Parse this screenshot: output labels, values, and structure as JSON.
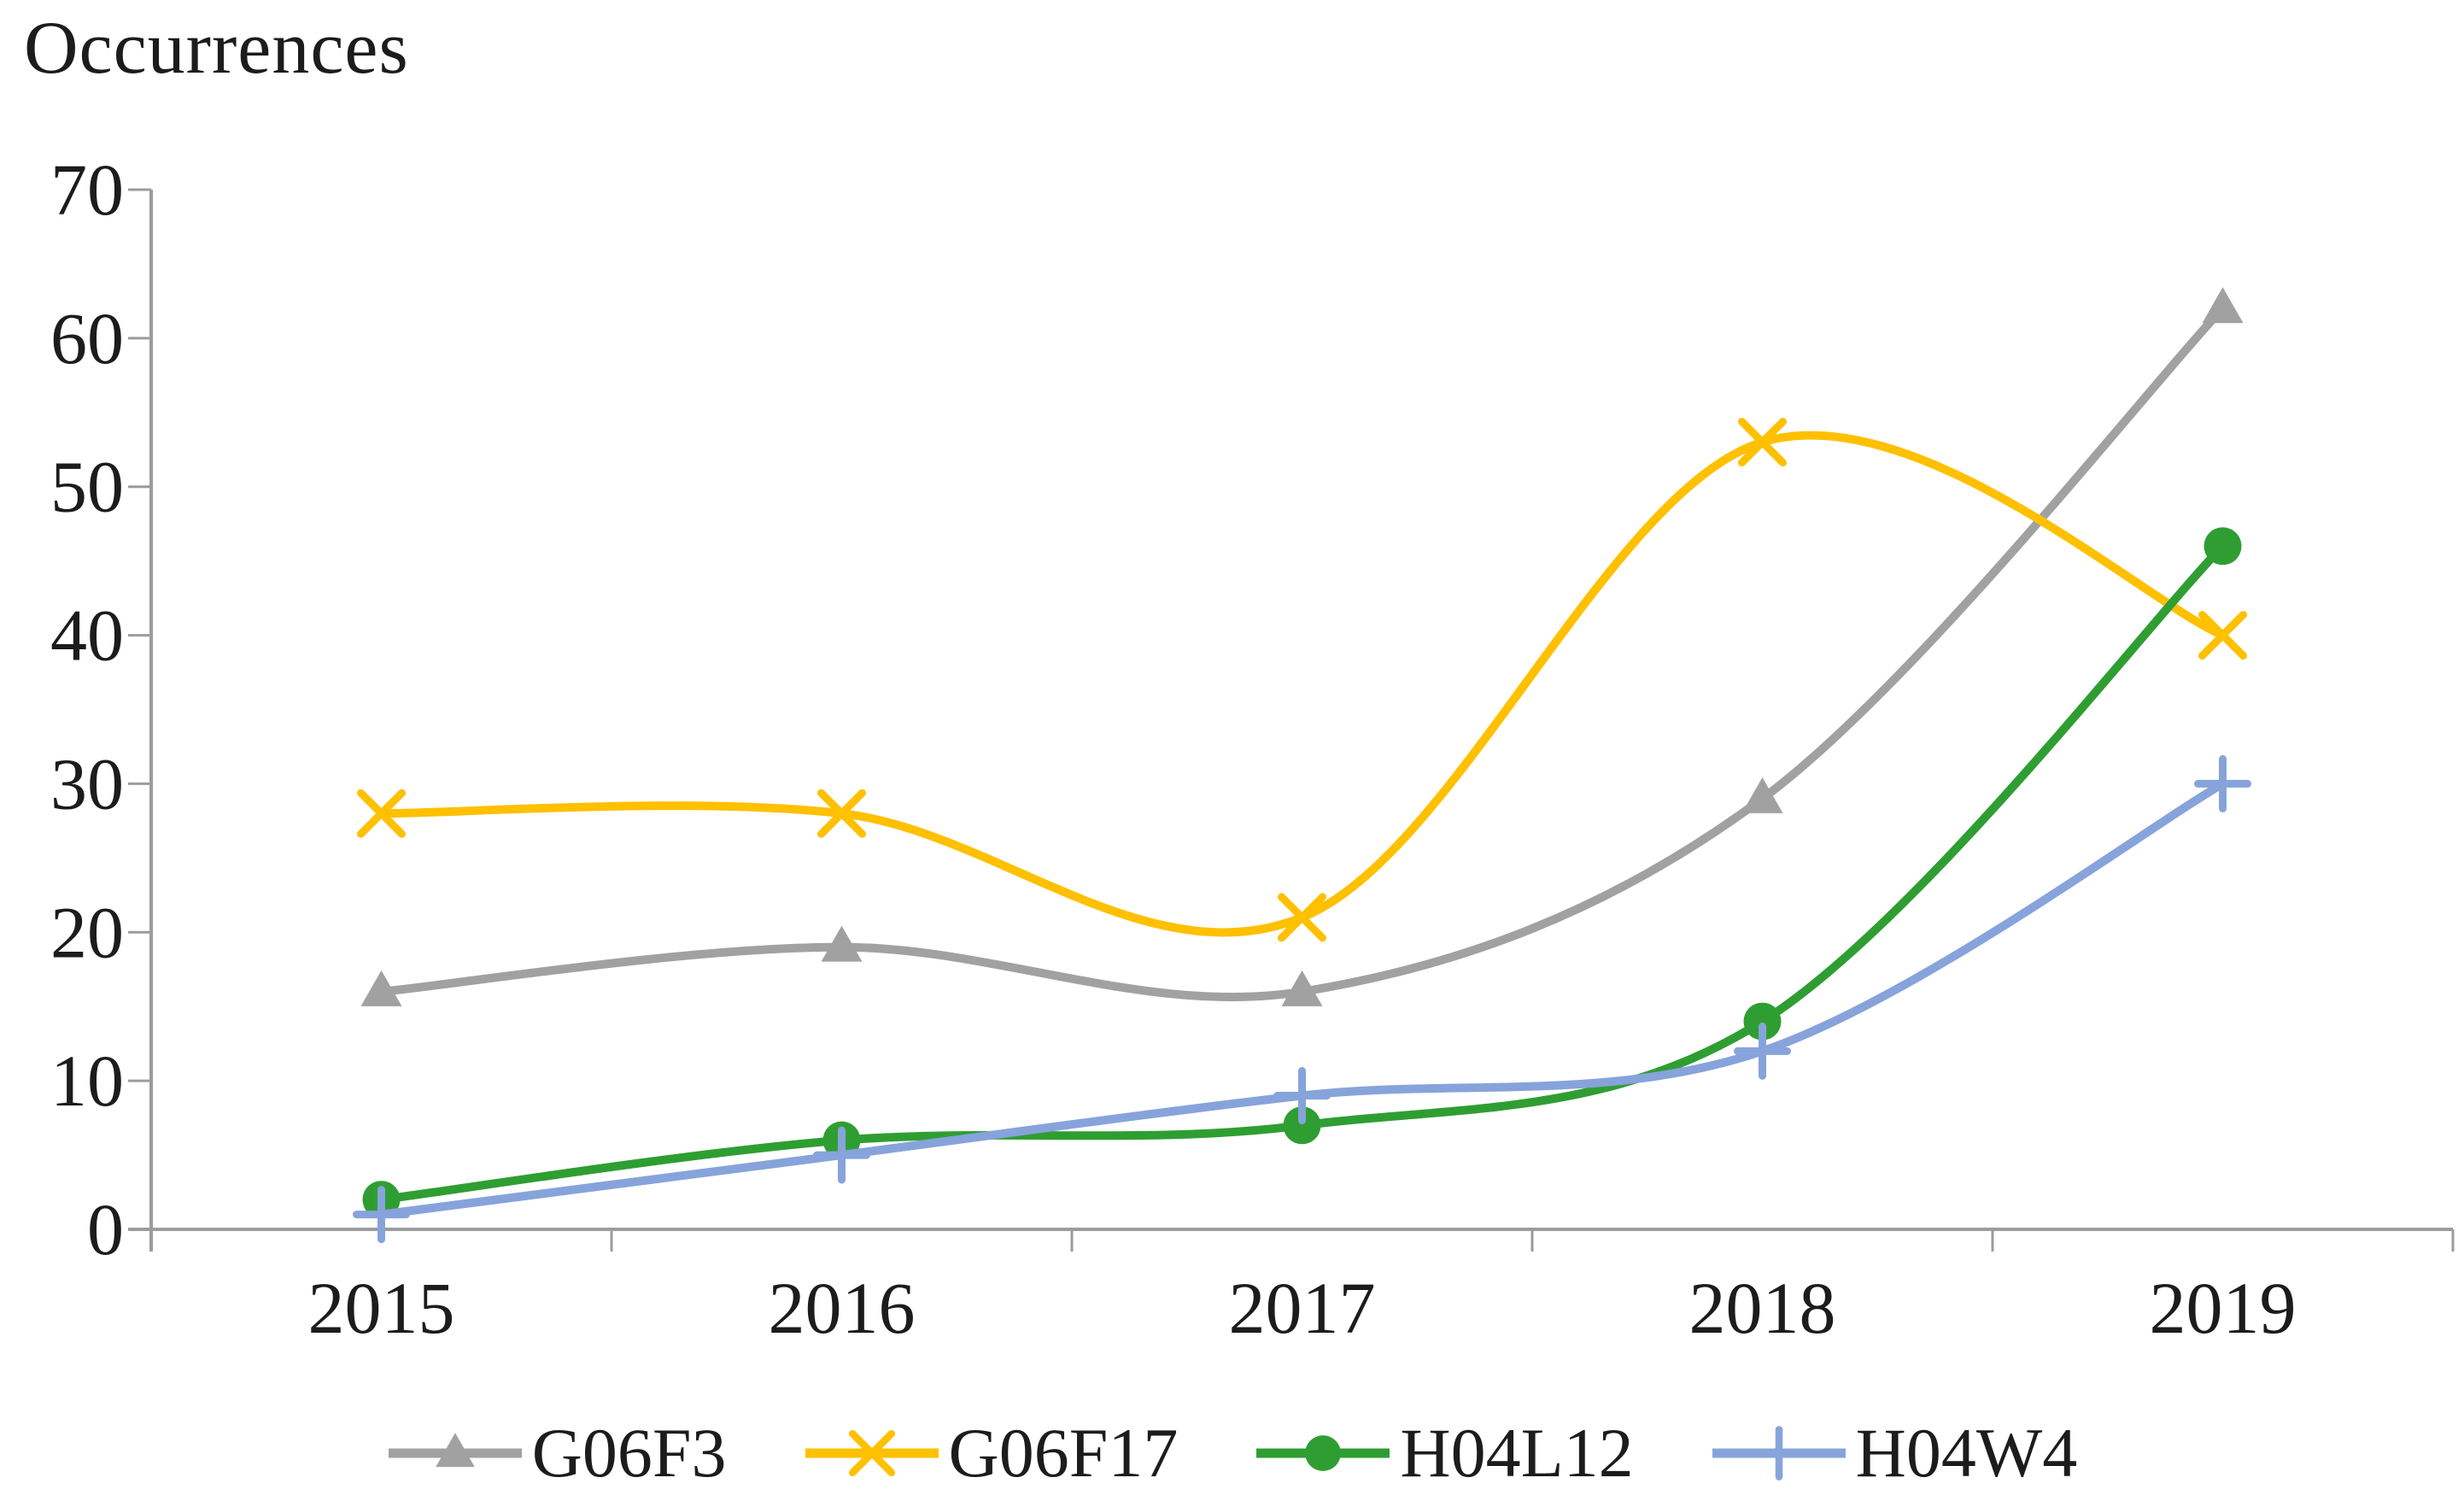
{
  "chart_data": {
    "type": "line",
    "title": "Occurrences",
    "categories": [
      "2015",
      "2016",
      "2017",
      "2018",
      "2019"
    ],
    "series": [
      {
        "name": "G06F3",
        "color": "#a1a1a1",
        "marker": "triangle",
        "values": [
          16,
          19,
          16,
          29,
          62
        ]
      },
      {
        "name": "G06F17",
        "color": "#ffc000",
        "marker": "x",
        "values": [
          28,
          28,
          21,
          53,
          40
        ]
      },
      {
        "name": "H04L12",
        "color": "#2f9e32",
        "marker": "circle",
        "values": [
          2,
          6,
          7,
          14,
          46
        ]
      },
      {
        "name": "H04W4",
        "color": "#87a3db",
        "marker": "plus",
        "values": [
          1,
          5,
          9,
          12,
          30
        ]
      }
    ],
    "y_axis": {
      "min": 0,
      "max": 70,
      "step": 10,
      "tick_labels": [
        "0",
        "10",
        "20",
        "30",
        "40",
        "50",
        "60",
        "70"
      ]
    },
    "x_axis": {
      "tick_labels": [
        "2015",
        "2016",
        "2017",
        "2018",
        "2019"
      ]
    },
    "legend": {
      "position": "bottom",
      "entries": [
        "G06F3",
        "G06F17",
        "H04L12",
        "H04W4"
      ]
    },
    "line_style": "smooth",
    "grid": false,
    "axis_color": "#9c9c9c",
    "text_color": "#1c1c1c"
  }
}
